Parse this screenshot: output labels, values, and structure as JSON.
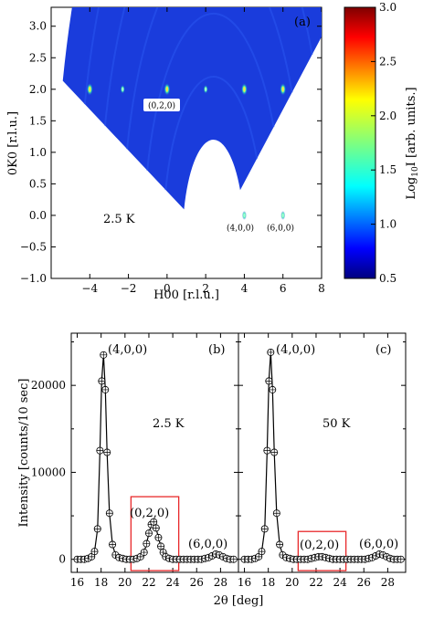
{
  "chart_data": [
    {
      "panel": "(a)",
      "type": "heatmap",
      "xlabel": "H00 [r.l.u.]",
      "ylabel": "0K0 [r.l.u.]",
      "xlim": [
        -6,
        8
      ],
      "ylim": [
        -1,
        3.3
      ],
      "xticks": [
        -4,
        -2,
        0,
        2,
        4,
        6,
        8
      ],
      "yticks": [
        -1.0,
        -0.5,
        0.0,
        0.5,
        1.0,
        1.5,
        2.0,
        2.5,
        3.0
      ],
      "temperature": "2.5 K",
      "colorbar": {
        "label": "Log10I [arb. units.]",
        "range": [
          0.5,
          3.0
        ],
        "ticks": [
          0.5,
          1.0,
          1.5,
          2.0,
          2.5,
          3.0
        ]
      },
      "peak_labels": [
        {
          "text": "(0,2,0)",
          "h": 0,
          "k": 2
        },
        {
          "text": "(4,0,0)",
          "h": 4,
          "k": 0
        },
        {
          "text": "(6,0,0)",
          "h": 6,
          "k": 0
        }
      ],
      "bright_spots": [
        {
          "h": -4,
          "k": 2,
          "level": 2.2
        },
        {
          "h": -2.3,
          "k": 2,
          "level": 1.6
        },
        {
          "h": 0,
          "k": 2,
          "level": 2.0
        },
        {
          "h": 2,
          "k": 2,
          "level": 1.5
        },
        {
          "h": 4,
          "k": 2,
          "level": 2.2
        },
        {
          "h": 6,
          "k": 2,
          "level": 2.0
        },
        {
          "h": 4,
          "k": 0,
          "level": 1.5
        },
        {
          "h": 6,
          "k": 0,
          "level": 1.3
        }
      ]
    },
    {
      "panel": "(b)",
      "type": "line",
      "temperature": "2.5 K",
      "ylabel": "Intensity [counts/10 sec]",
      "xlim": [
        15.5,
        29.5
      ],
      "ylim": [
        -1500,
        26000
      ],
      "xticks": [
        16,
        18,
        20,
        22,
        24,
        26,
        28
      ],
      "yticks": [
        0,
        10000,
        20000
      ],
      "peak_labels": [
        {
          "text": "(4,0,0)",
          "x": 18.2
        },
        {
          "text": "(0,2,0)",
          "x": 22.4
        },
        {
          "text": "(6,0,0)",
          "x": 27.8
        }
      ],
      "x": [
        16.0,
        16.3,
        16.6,
        16.9,
        17.2,
        17.45,
        17.7,
        17.9,
        18.05,
        18.2,
        18.35,
        18.5,
        18.7,
        18.95,
        19.2,
        19.5,
        19.8,
        20.1,
        20.4,
        20.7,
        21.0,
        21.3,
        21.6,
        21.8,
        22.0,
        22.2,
        22.4,
        22.6,
        22.8,
        23.0,
        23.2,
        23.4,
        23.7,
        24.0,
        24.3,
        24.6,
        24.9,
        25.2,
        25.5,
        25.8,
        26.1,
        26.4,
        26.7,
        27.0,
        27.3,
        27.6,
        27.9,
        28.2,
        28.5,
        28.8,
        29.1
      ],
      "y": [
        0,
        0,
        0,
        100,
        300,
        900,
        3500,
        12500,
        20500,
        23500,
        19500,
        12300,
        5300,
        1700,
        500,
        200,
        100,
        0,
        0,
        0,
        100,
        300,
        800,
        1800,
        3000,
        4000,
        4300,
        3600,
        2500,
        1500,
        800,
        300,
        100,
        0,
        0,
        0,
        0,
        0,
        0,
        0,
        0,
        0,
        100,
        200,
        400,
        600,
        500,
        300,
        100,
        0,
        0
      ],
      "highlight_box_x": [
        20.5,
        24.5
      ]
    },
    {
      "panel": "(c)",
      "type": "line",
      "temperature": "50 K",
      "xlim": [
        15.5,
        29.5
      ],
      "ylim": [
        -1500,
        26000
      ],
      "xticks": [
        16,
        18,
        20,
        22,
        24,
        26,
        28
      ],
      "peak_labels": [
        {
          "text": "(4,0,0)",
          "x": 18.2
        },
        {
          "text": "(0,2,0)",
          "x": 22.4
        },
        {
          "text": "(6,0,0)",
          "x": 27.8
        }
      ],
      "x": [
        16.0,
        16.3,
        16.6,
        16.9,
        17.2,
        17.45,
        17.7,
        17.9,
        18.05,
        18.2,
        18.35,
        18.5,
        18.7,
        18.95,
        19.2,
        19.5,
        19.8,
        20.1,
        20.4,
        20.7,
        21.0,
        21.3,
        21.6,
        21.9,
        22.2,
        22.5,
        22.8,
        23.1,
        23.4,
        23.7,
        24.0,
        24.3,
        24.6,
        24.9,
        25.2,
        25.5,
        25.8,
        26.1,
        26.4,
        26.7,
        27.0,
        27.3,
        27.6,
        27.9,
        28.2,
        28.5,
        28.8,
        29.1
      ],
      "y": [
        0,
        0,
        0,
        100,
        300,
        900,
        3500,
        12500,
        20500,
        23800,
        19500,
        12300,
        5300,
        1700,
        500,
        200,
        100,
        0,
        0,
        0,
        0,
        0,
        100,
        200,
        300,
        300,
        200,
        100,
        0,
        0,
        0,
        0,
        0,
        0,
        0,
        0,
        0,
        0,
        100,
        200,
        400,
        600,
        500,
        300,
        100,
        0,
        0,
        0
      ],
      "highlight_box_x": [
        20.5,
        24.5
      ]
    }
  ],
  "shared": {
    "xlabel_bottom": "2θ [deg]"
  },
  "colors": {
    "box": "#e8292b",
    "map_background": "#1a3cdc"
  }
}
